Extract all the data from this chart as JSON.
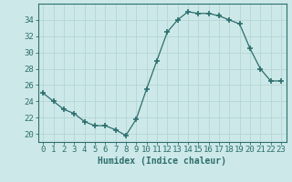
{
  "x": [
    0,
    1,
    2,
    3,
    4,
    5,
    6,
    7,
    8,
    9,
    10,
    11,
    12,
    13,
    14,
    15,
    16,
    17,
    18,
    19,
    20,
    21,
    22,
    23
  ],
  "y": [
    25.0,
    24.0,
    23.0,
    22.5,
    21.5,
    21.0,
    21.0,
    20.5,
    19.8,
    21.8,
    25.5,
    29.0,
    32.5,
    34.0,
    35.0,
    34.8,
    34.8,
    34.5,
    34.0,
    33.5,
    30.5,
    28.0,
    26.5,
    26.5
  ],
  "line_color": "#2d6e6e",
  "marker": "+",
  "marker_size": 4,
  "marker_lw": 1.2,
  "bg_color": "#cde8e8",
  "grid_color": "#b8d8d8",
  "axis_color": "#2d6e6e",
  "xlabel": "Humidex (Indice chaleur)",
  "ylim": [
    19,
    36
  ],
  "xlim": [
    -0.5,
    23.5
  ],
  "yticks": [
    20,
    22,
    24,
    26,
    28,
    30,
    32,
    34
  ],
  "xticks": [
    0,
    1,
    2,
    3,
    4,
    5,
    6,
    7,
    8,
    9,
    10,
    11,
    12,
    13,
    14,
    15,
    16,
    17,
    18,
    19,
    20,
    21,
    22,
    23
  ],
  "xlabel_fontsize": 7,
  "tick_fontsize": 6.5
}
